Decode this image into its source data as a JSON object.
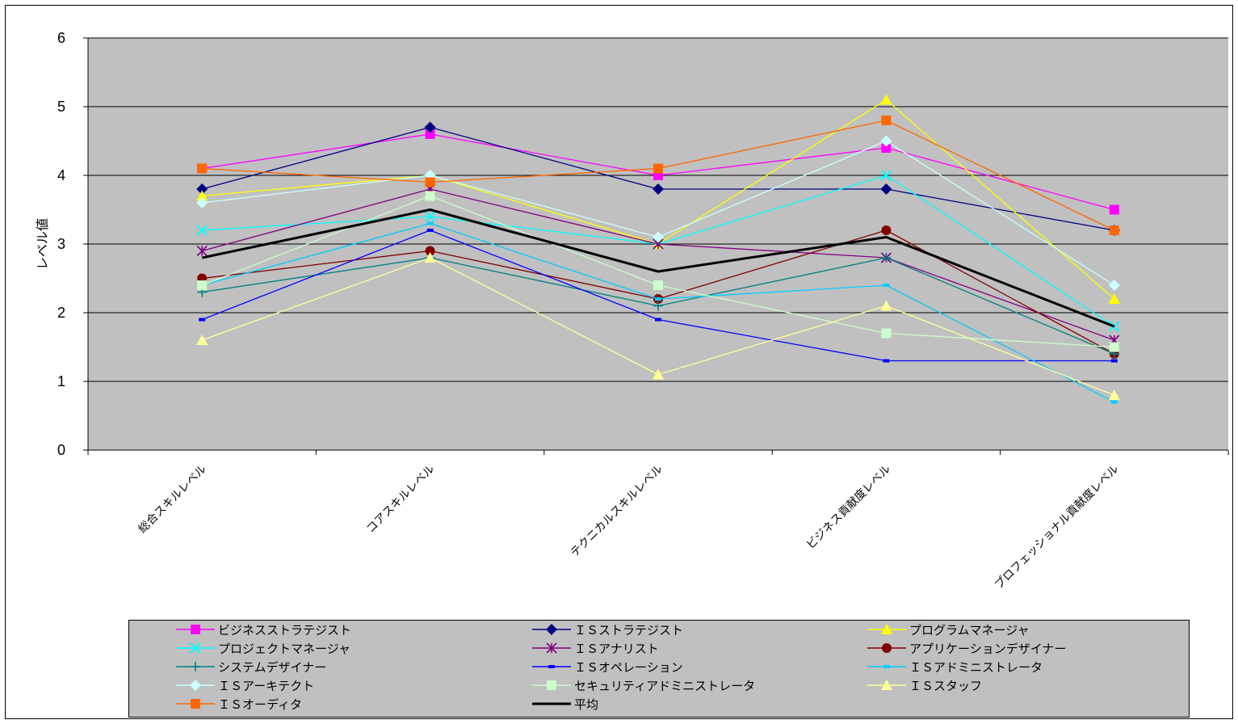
{
  "chart_data": {
    "type": "line",
    "title": "",
    "xlabel": "",
    "ylabel": "レベル値",
    "ylim": [
      0,
      6
    ],
    "yticks": [
      "0",
      "1",
      "2",
      "3",
      "4",
      "5",
      "6"
    ],
    "grid": true,
    "legend_position": "bottom",
    "plot_background": "#c0c0c0",
    "categories": [
      "総合スキルレベル",
      "コアスキルレベル",
      "テクニカルスキルレベル",
      "ビジネス貢献度レベル",
      "プロフェッショナル貢献度レベル"
    ],
    "series": [
      {
        "name": "ビジネスストラテジスト",
        "color": "#ff00ff",
        "marker": "square",
        "values": [
          4.1,
          4.6,
          4.0,
          4.4,
          3.5
        ]
      },
      {
        "name": "ＩＳストラテジスト",
        "color": "#000080",
        "marker": "diamond",
        "values": [
          3.8,
          4.7,
          3.8,
          3.8,
          3.2
        ]
      },
      {
        "name": "プログラムマネージャ",
        "color": "#ffff00",
        "marker": "triangle",
        "values": [
          3.7,
          4.0,
          3.0,
          5.1,
          2.2
        ]
      },
      {
        "name": "プロジェクトマネージャ",
        "color": "#00ffff",
        "marker": "x",
        "values": [
          3.2,
          3.4,
          3.0,
          4.0,
          1.8
        ]
      },
      {
        "name": "ＩＳアナリスト",
        "color": "#800080",
        "marker": "star",
        "values": [
          2.9,
          3.8,
          3.0,
          2.8,
          1.6
        ]
      },
      {
        "name": "アプリケーションデザイナー",
        "color": "#800000",
        "marker": "circle",
        "values": [
          2.5,
          2.9,
          2.2,
          3.2,
          1.4
        ]
      },
      {
        "name": "システムデザイナー",
        "color": "#008080",
        "marker": "plus",
        "values": [
          2.3,
          2.8,
          2.1,
          2.8,
          1.4
        ]
      },
      {
        "name": "ＩＳオペレーション",
        "color": "#0000ff",
        "marker": "dash",
        "values": [
          1.9,
          3.2,
          1.9,
          1.3,
          1.3
        ]
      },
      {
        "name": "ＩＳアドミニストレータ",
        "color": "#00ccff",
        "marker": "dash",
        "values": [
          2.4,
          3.3,
          2.2,
          2.4,
          0.7
        ]
      },
      {
        "name": "ＩＳアーキテクト",
        "color": "#ccffff",
        "marker": "diamond",
        "values": [
          3.6,
          4.0,
          3.1,
          4.5,
          2.4
        ]
      },
      {
        "name": "セキュリティアドミニストレータ",
        "color": "#ccffcc",
        "marker": "square",
        "values": [
          2.4,
          3.7,
          2.4,
          1.7,
          1.5
        ]
      },
      {
        "name": "ＩＳスタッフ",
        "color": "#ffff99",
        "marker": "triangle",
        "values": [
          1.6,
          2.8,
          1.1,
          2.1,
          0.8
        ]
      },
      {
        "name": "ＩＳオーディタ",
        "color": "#ff6600",
        "marker": "square",
        "values": [
          4.1,
          3.9,
          4.1,
          4.8,
          3.2
        ]
      },
      {
        "name": "平均",
        "color": "#000000",
        "marker": "none",
        "values": [
          2.8,
          3.5,
          2.6,
          3.1,
          1.8
        ]
      }
    ]
  }
}
